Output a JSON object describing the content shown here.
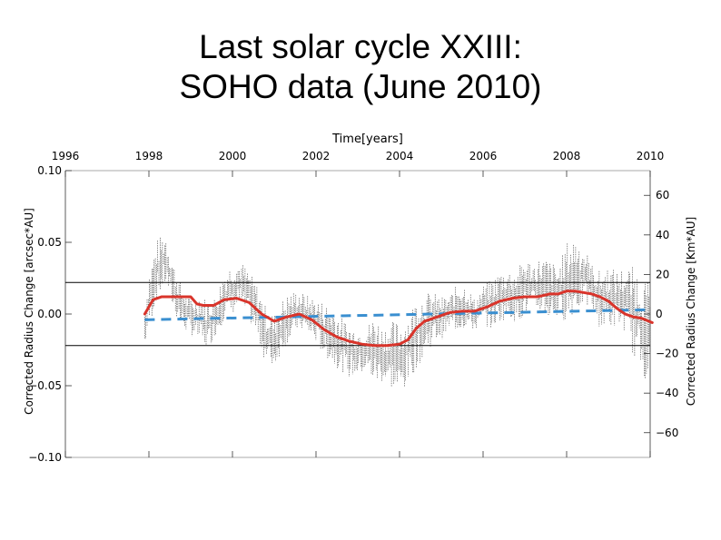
{
  "title_lines": [
    "Last solar cycle XXIII:",
    "SOHO data (June 2010)"
  ],
  "chart_data": {
    "type": "line",
    "xlabel": "Time[years]",
    "ylabel_left": "Corrected Radius Change [arcsec*AU]",
    "ylabel_right": "Corrected Radius Change [Km*AU]",
    "xlim": [
      1996,
      2010
    ],
    "ylim_left": [
      -0.1,
      0.1
    ],
    "ylim_right": [
      -72.5,
      72.5
    ],
    "x_ticks": [
      1996,
      1998,
      2000,
      2002,
      2004,
      2006,
      2008,
      2010
    ],
    "x_tick_labels": [
      "1996",
      "1998",
      "2000",
      "2002",
      "2004",
      "2006",
      "2008",
      "2010"
    ],
    "y_ticks_left": [
      0.1,
      0.05,
      0.0,
      -0.05,
      -0.1
    ],
    "y_tick_labels_left": [
      "0.10",
      "0.05",
      "0.00",
      "−0.05",
      "−0.10"
    ],
    "y_ticks_right": [
      60,
      40,
      20,
      0,
      -20,
      -40,
      -60
    ],
    "y_tick_labels_right": [
      "60",
      "40",
      "20",
      "0",
      "−20",
      "−40",
      "−60"
    ],
    "reference_lines": [
      0.022,
      -0.022
    ],
    "grid": false,
    "legend": "none",
    "colors": {
      "scatter": "#000000",
      "smoothed": "#d9342b",
      "trend": "#3a8fd0"
    },
    "series": [
      {
        "style": "scatter-envelope",
        "x": [
          1997.9,
          1998.0,
          1998.2,
          1998.4,
          1998.6,
          1998.8,
          1999.0,
          1999.2,
          1999.4,
          1999.6,
          1999.8,
          2000.0,
          2000.2,
          2000.4,
          2000.6,
          2000.8,
          2001.0,
          2001.2,
          2001.4,
          2001.6,
          2001.8,
          2002.0,
          2002.2,
          2002.4,
          2002.6,
          2002.8,
          2003.0,
          2003.2,
          2003.4,
          2003.6,
          2003.8,
          2004.0,
          2004.2,
          2004.4,
          2004.6,
          2004.8,
          2005.0,
          2005.2,
          2005.4,
          2005.6,
          2005.8,
          2006.0,
          2006.2,
          2006.4,
          2006.6,
          2006.8,
          2007.0,
          2007.2,
          2007.4,
          2007.6,
          2007.8,
          2008.0,
          2008.2,
          2008.4,
          2008.6,
          2008.8,
          2009.0,
          2009.2,
          2009.4,
          2009.6,
          2009.8,
          2010.0
        ],
        "high": [
          0.005,
          0.03,
          0.052,
          0.058,
          0.035,
          0.018,
          0.012,
          0.015,
          0.01,
          0.012,
          0.03,
          0.036,
          0.037,
          0.03,
          0.02,
          0.005,
          0.0,
          0.01,
          0.016,
          0.016,
          0.013,
          0.011,
          0.008,
          0.005,
          -0.002,
          -0.007,
          -0.01,
          -0.009,
          0.0,
          -0.009,
          -0.005,
          -0.005,
          0.0,
          0.011,
          0.015,
          0.015,
          0.012,
          0.013,
          0.022,
          0.021,
          0.01,
          0.02,
          0.024,
          0.03,
          0.031,
          0.03,
          0.04,
          0.036,
          0.04,
          0.038,
          0.032,
          0.05,
          0.055,
          0.049,
          0.035,
          0.03,
          0.034,
          0.03,
          0.033,
          0.033,
          0.028,
          0.02
        ],
        "low": [
          -0.025,
          -0.01,
          0.01,
          0.02,
          0.0,
          -0.01,
          -0.015,
          -0.02,
          -0.025,
          -0.015,
          -0.005,
          0.0,
          0.005,
          -0.005,
          -0.018,
          -0.035,
          -0.038,
          -0.025,
          -0.018,
          -0.01,
          -0.015,
          -0.02,
          -0.03,
          -0.035,
          -0.04,
          -0.045,
          -0.043,
          -0.041,
          -0.05,
          -0.048,
          -0.052,
          -0.059,
          -0.049,
          -0.038,
          -0.03,
          -0.02,
          -0.018,
          -0.011,
          -0.012,
          -0.01,
          -0.012,
          -0.007,
          -0.011,
          -0.006,
          -0.003,
          -0.006,
          -0.002,
          0.001,
          0.0,
          -0.005,
          -0.003,
          -0.005,
          0.0,
          0.005,
          0.003,
          -0.01,
          -0.01,
          -0.009,
          -0.012,
          -0.03,
          -0.04,
          -0.055
        ]
      },
      {
        "style": "smoothed-line",
        "x": [
          1997.9,
          1998.1,
          1998.3,
          1998.6,
          1999.0,
          1999.15,
          1999.3,
          1999.55,
          1999.8,
          2000.1,
          2000.4,
          2000.7,
          2001.0,
          2001.3,
          2001.6,
          2001.9,
          2002.2,
          2002.5,
          2002.8,
          2003.1,
          2003.4,
          2003.7,
          2004.0,
          2004.2,
          2004.4,
          2004.6,
          2004.9,
          2005.2,
          2005.5,
          2005.8,
          2006.1,
          2006.4,
          2006.7,
          2007.0,
          2007.3,
          2007.6,
          2007.8,
          2008.0,
          2008.2,
          2008.4,
          2008.6,
          2008.8,
          2009.0,
          2009.2,
          2009.4,
          2009.6,
          2009.8,
          2010.05
        ],
        "y": [
          0.0,
          0.01,
          0.012,
          0.012,
          0.012,
          0.007,
          0.006,
          0.006,
          0.01,
          0.011,
          0.008,
          0.0,
          -0.005,
          -0.002,
          0.0,
          -0.004,
          -0.011,
          -0.016,
          -0.019,
          -0.021,
          -0.022,
          -0.022,
          -0.021,
          -0.018,
          -0.01,
          -0.005,
          -0.002,
          0.001,
          0.002,
          0.002,
          0.005,
          0.009,
          0.011,
          0.012,
          0.012,
          0.014,
          0.014,
          0.016,
          0.016,
          0.015,
          0.014,
          0.012,
          0.009,
          0.004,
          0.0,
          -0.002,
          -0.003,
          -0.006
        ]
      },
      {
        "style": "dashed-trend",
        "x": [
          1997.9,
          2010.0
        ],
        "y": [
          -0.004,
          0.003
        ]
      }
    ]
  }
}
